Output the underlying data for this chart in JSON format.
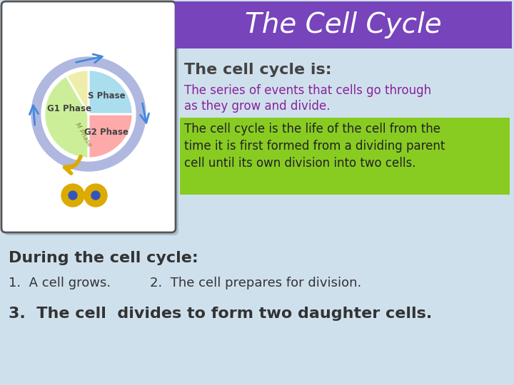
{
  "bg_color": "#cfe0ed",
  "title": "The Cell Cycle",
  "title_bg_top": "#7744bb",
  "title_bg_bot": "#551199",
  "title_color": "#ffffff",
  "subtitle": "The cell cycle is:",
  "subtitle_color": "#444444",
  "body1_line1": "The series of events that cells go through",
  "body1_line2": "as they grow and divide.",
  "body1_color": "#882299",
  "body2_line1": "The cell cycle is the life of the cell from the",
  "body2_line2": "time it is first formed from a dividing parent",
  "body2_line3": "cell until its own division into two cells.",
  "body2_color": "#222222",
  "body2_bg": "#88cc22",
  "during_title": "During the cell cycle:",
  "during_color": "#333333",
  "item1": "1.  A cell grows.",
  "item2": "2.  The cell prepares for division.",
  "item3": "3.  The cell  divides to form two daughter cells.",
  "item_color": "#333333",
  "img_box_color": "#ffffff",
  "img_border_color": "#555555",
  "outer_ring_color": "#b0b8e0",
  "arrow_blue": "#4488dd",
  "arrow_yellow": "#ddaa00",
  "g1_color": "#ccee99",
  "s_color": "#ffaaaa",
  "g2_color": "#aaddee",
  "m_color": "#eeeeaa"
}
